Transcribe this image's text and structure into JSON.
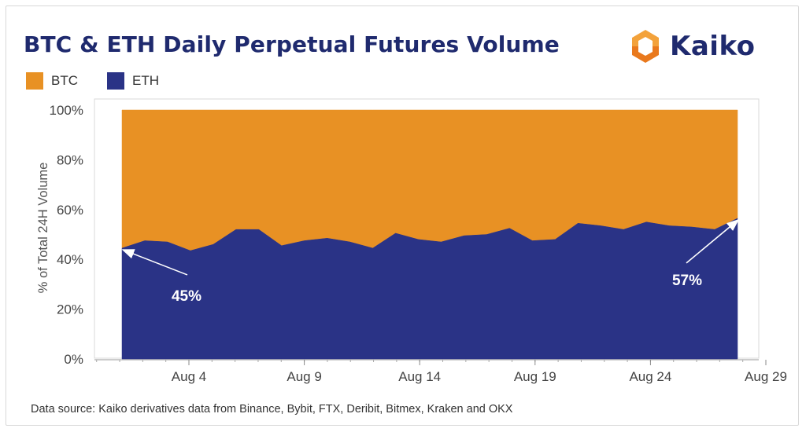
{
  "brand": {
    "name": "Kaiko",
    "logo_colors": [
      "#f3a23b",
      "#e9791d"
    ]
  },
  "footer": {
    "source_text": "Data source: Kaiko derivatives data from Binance, Bybit, FTX, Deribit, Bitmex, Kraken and OKX"
  },
  "colors": {
    "btc": "#e89124",
    "eth": "#2a3386",
    "title": "#1f2a6e",
    "axis": "#888888"
  },
  "chart_data": {
    "type": "area",
    "stacked": true,
    "normalized_percent": true,
    "title": "BTC & ETH Daily Perpetual Futures Volume",
    "ylabel": "% of Total 24H Volume",
    "xlabel": "",
    "ylim": [
      0,
      100
    ],
    "yticks": [
      "0%",
      "20%",
      "40%",
      "60%",
      "80%",
      "100%"
    ],
    "x": [
      "Aug 1",
      "Aug 2",
      "Aug 3",
      "Aug 4",
      "Aug 5",
      "Aug 6",
      "Aug 7",
      "Aug 8",
      "Aug 9",
      "Aug 10",
      "Aug 11",
      "Aug 12",
      "Aug 13",
      "Aug 14",
      "Aug 15",
      "Aug 16",
      "Aug 17",
      "Aug 18",
      "Aug 19",
      "Aug 20",
      "Aug 21",
      "Aug 22",
      "Aug 23",
      "Aug 24",
      "Aug 25",
      "Aug 26",
      "Aug 27",
      "Aug 28"
    ],
    "xticks": [
      "Aug 4",
      "Aug 9",
      "Aug 14",
      "Aug 19",
      "Aug 24",
      "Aug 29"
    ],
    "legend": [
      "BTC",
      "ETH"
    ],
    "legend_position": "top-left",
    "grid": false,
    "series": [
      {
        "name": "ETH",
        "color": "#2a3386",
        "values": [
          44.5,
          47.5,
          47.0,
          43.5,
          46.0,
          52.0,
          52.0,
          45.5,
          47.5,
          48.5,
          47.0,
          44.5,
          50.5,
          48.0,
          47.0,
          49.5,
          50.0,
          52.5,
          47.5,
          48.0,
          54.5,
          53.5,
          52.0,
          55.0,
          53.5,
          53.0,
          52.0,
          56.5
        ]
      },
      {
        "name": "BTC",
        "color": "#e89124",
        "values": [
          55.5,
          52.5,
          53.0,
          56.5,
          54.0,
          48.0,
          48.0,
          54.5,
          52.5,
          51.5,
          53.0,
          55.5,
          49.5,
          52.0,
          53.0,
          50.5,
          50.0,
          47.5,
          52.5,
          52.0,
          45.5,
          46.5,
          48.0,
          45.0,
          46.5,
          47.0,
          48.0,
          43.5
        ]
      }
    ],
    "annotations": [
      {
        "text": "45%",
        "x": "Aug 1",
        "y": 44.5
      },
      {
        "text": "57%",
        "x": "Aug 28",
        "y": 56.5
      }
    ]
  }
}
